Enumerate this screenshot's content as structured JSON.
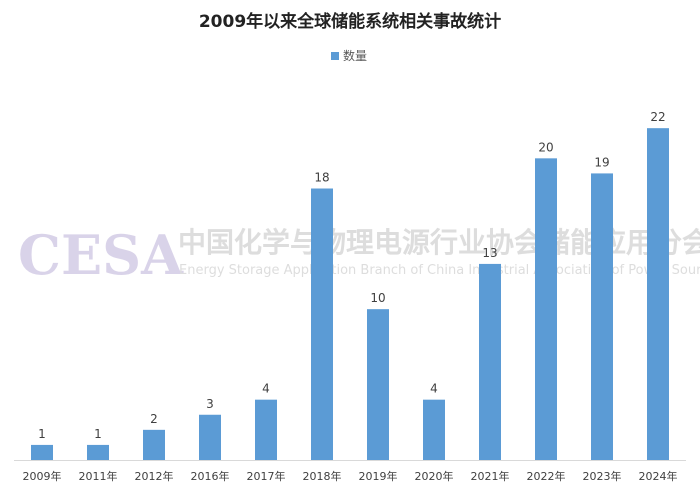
{
  "chart_data": {
    "type": "bar",
    "title": "2009年以来全球储能系统相关事故统计",
    "xlabel": "",
    "ylabel": "",
    "categories": [
      "2009年",
      "2011年",
      "2012年",
      "2016年",
      "2017年",
      "2018年",
      "2019年",
      "2020年",
      "2021年",
      "2022年",
      "2023年",
      "2024年"
    ],
    "series": [
      {
        "name": "数量",
        "values": [
          1,
          1,
          2,
          3,
          4,
          18,
          10,
          4,
          13,
          20,
          19,
          22
        ],
        "color": "#5b9bd5"
      }
    ],
    "ylim": [
      0,
      24
    ],
    "grid": false,
    "legend": "top-center",
    "watermark": {
      "logo": "CESA",
      "cn": "中国化学与物理电源行业协会储能应用分会",
      "en": "Energy Storage Application Branch of China Industrial Association of Power Sources"
    }
  }
}
